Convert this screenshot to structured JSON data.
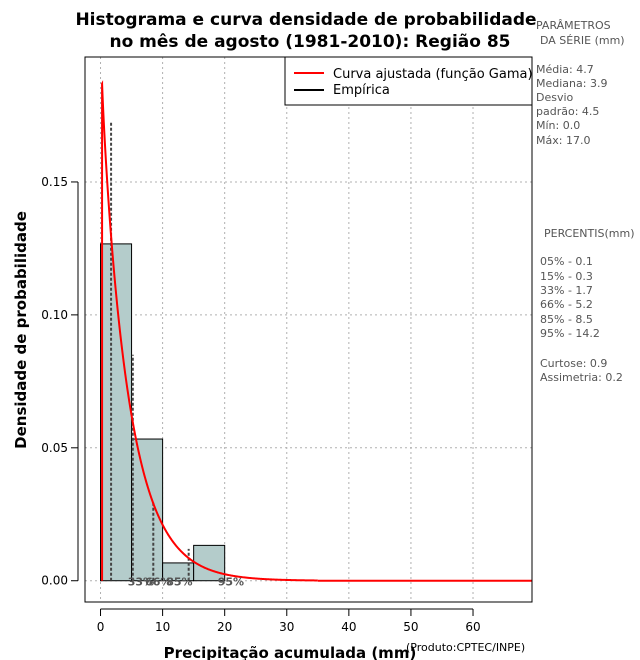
{
  "chart_data": {
    "type": "bar",
    "title_line1": "Histograma e curva densidade de probabilidade",
    "title_line2": "no mês de agosto (1981-2010): Região 85",
    "xlabel": "Precipitação acumulada (mm)",
    "ylabel": "Densidade de probabilidade",
    "credit": "(Produto:CPTEC/INPE)",
    "xlim": [
      -2.5,
      69.5
    ],
    "ylim": [
      -0.008,
      0.197
    ],
    "x_ticks": [
      0,
      10,
      20,
      30,
      40,
      50,
      60
    ],
    "x_tick_labels": [
      "0",
      "10",
      "20",
      "30",
      "40",
      "50",
      "60"
    ],
    "y_ticks": [
      0.0,
      0.05,
      0.1,
      0.15
    ],
    "y_tick_labels": [
      "0.00",
      "0.05",
      "0.10",
      "0.15"
    ],
    "grid": true,
    "histogram": {
      "bins": [
        [
          0,
          5
        ],
        [
          5,
          10
        ],
        [
          10,
          15
        ],
        [
          15,
          20
        ]
      ],
      "values": [
        0.1267,
        0.0533,
        0.0067,
        0.0133
      ],
      "color": "#b4cccb"
    },
    "gamma_curve": {
      "name": "Curva ajustada (função Gama)",
      "color": "#ff0000",
      "shape": 0.97,
      "scale": 4.7,
      "start": 0.25,
      "end": 35,
      "peak_y": 0.187
    },
    "empirical": {
      "name": "Empírica",
      "color": "#000000",
      "points": [
        {
          "x": 1.7,
          "y": 0.173
        },
        {
          "x": 5.2,
          "y": 0.085
        },
        {
          "x": 8.5,
          "y": 0.03
        },
        {
          "x": 14.2,
          "y": 0.012
        }
      ]
    },
    "percentile_marks": [
      {
        "label": "33%",
        "x": 1.7,
        "label_x": 6.5
      },
      {
        "label": "66%",
        "x": 5.2,
        "label_x": 9.3
      },
      {
        "label": "85%",
        "x": 8.5,
        "label_x": 12.7
      },
      {
        "label": "95%",
        "x": 14.2,
        "label_x": 21.0
      }
    ],
    "legend_position": "top-right"
  },
  "sidebar": {
    "params_title_1": "PARÂMETROS",
    "params_title_2": "DA SÉRIE (mm)",
    "stats": [
      "Média:  4.7",
      "Mediana:  3.9",
      "Desvio",
      "padrão:  4.5",
      "Mín:  0.0",
      "Máx:  17.0"
    ],
    "percentis_title": "PERCENTIS(mm)",
    "percentis": [
      "05% -   0.1",
      "15% -   0.3",
      "33% -   1.7",
      "66% -   5.2",
      "85% -   8.5",
      "95% -  14.2"
    ],
    "shape": [
      "Curtose:  0.9",
      "Assimetria:  0.2"
    ]
  }
}
